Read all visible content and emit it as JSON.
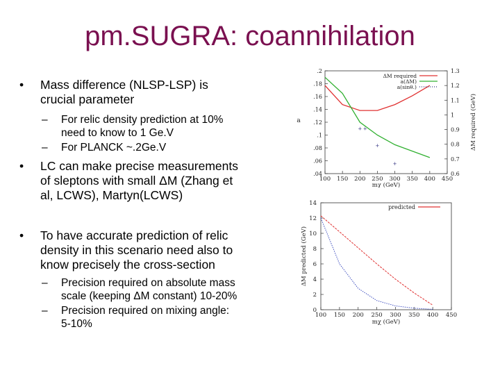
{
  "slide": {
    "title": "pm.SUGRA: coannihilation",
    "bullet_glyph": "•",
    "dash_glyph": "–",
    "bullets": [
      {
        "text": "Mass difference (NLSP-LSP) is crucial parameter",
        "sub": [
          "For relic density prediction at 10% need to know to 1 Ge.V",
          "For PLANCK ~.2Ge.V"
        ]
      },
      {
        "text": "LC can make precise measurements of sleptons with small ΔM (Zhang et al, LCWS), Martyn(LCWS)"
      },
      {
        "text": "To have accurate prediction of relic density in this scenario need also to know precisely the cross-section",
        "sub": [
          "Precision required  on absolute mass scale (keeping ΔM constant) 10-20%",
          "Precision required on mixing angle: 5-10%"
        ]
      }
    ]
  },
  "chart_data": [
    {
      "type": "line",
      "xlabel": "mχ (GeV)",
      "ylabel_left": "a",
      "ylabel_right": "ΔM required (GeV)",
      "x_ticks": [
        100,
        150,
        200,
        250,
        300,
        350,
        400,
        450
      ],
      "y_left_ticks": [
        0.04,
        0.06,
        0.08,
        0.1,
        0.12,
        0.14,
        0.16,
        0.18,
        0.2
      ],
      "y_right_ticks": [
        0.6,
        0.7,
        0.8,
        0.9,
        1,
        1.1,
        1.2,
        1.3
      ],
      "xlim": [
        100,
        450
      ],
      "ylim_left": [
        0.04,
        0.2
      ],
      "ylim_right": [
        0.6,
        1.3
      ],
      "legend": [
        "ΔM required",
        "a(ΔM)",
        "a(sinθ.)"
      ],
      "legend_position": "top-right",
      "colors": {
        "dm_required": "#e03030",
        "a_dm": "#30b030",
        "a_sin": "#303080"
      },
      "series": [
        {
          "name": "ΔM required",
          "axis": "right",
          "x": [
            100,
            150,
            200,
            250,
            300,
            350,
            400
          ],
          "y": [
            1.2,
            1.07,
            1.03,
            1.03,
            1.07,
            1.13,
            1.2
          ]
        },
        {
          "name": "a(ΔM)",
          "axis": "left",
          "x": [
            100,
            150,
            200,
            250,
            300,
            350,
            400
          ],
          "y": [
            0.19,
            0.165,
            0.12,
            0.1,
            0.085,
            0.075,
            0.065
          ]
        },
        {
          "name": "a(sinθ.)",
          "axis": "left",
          "x": [
            200,
            215,
            250,
            300
          ],
          "y": [
            0.11,
            0.11,
            0.083,
            0.055
          ]
        }
      ]
    },
    {
      "type": "line",
      "xlabel": "mχ (GeV)",
      "ylabel": "ΔM predicted (GeV)",
      "x_ticks": [
        100,
        150,
        200,
        250,
        300,
        350,
        400,
        450
      ],
      "y_ticks": [
        0,
        2,
        4,
        6,
        8,
        10,
        12,
        14
      ],
      "xlim": [
        100,
        450
      ],
      "ylim": [
        0,
        14
      ],
      "legend": [
        "predicted"
      ],
      "legend_position": "top-right",
      "colors": {
        "predicted": "#e03030",
        "other": "#4050c0"
      },
      "series": [
        {
          "name": "predicted",
          "x": [
            100,
            150,
            200,
            250,
            300,
            350,
            400
          ],
          "y": [
            12.3,
            10.2,
            8.1,
            6.0,
            4.0,
            2.2,
            0.6
          ]
        },
        {
          "name": "",
          "x": [
            100,
            150,
            200,
            250,
            300,
            350,
            400
          ],
          "y": [
            12,
            6.0,
            2.8,
            1.2,
            0.5,
            0.2,
            0.05
          ]
        }
      ]
    }
  ]
}
